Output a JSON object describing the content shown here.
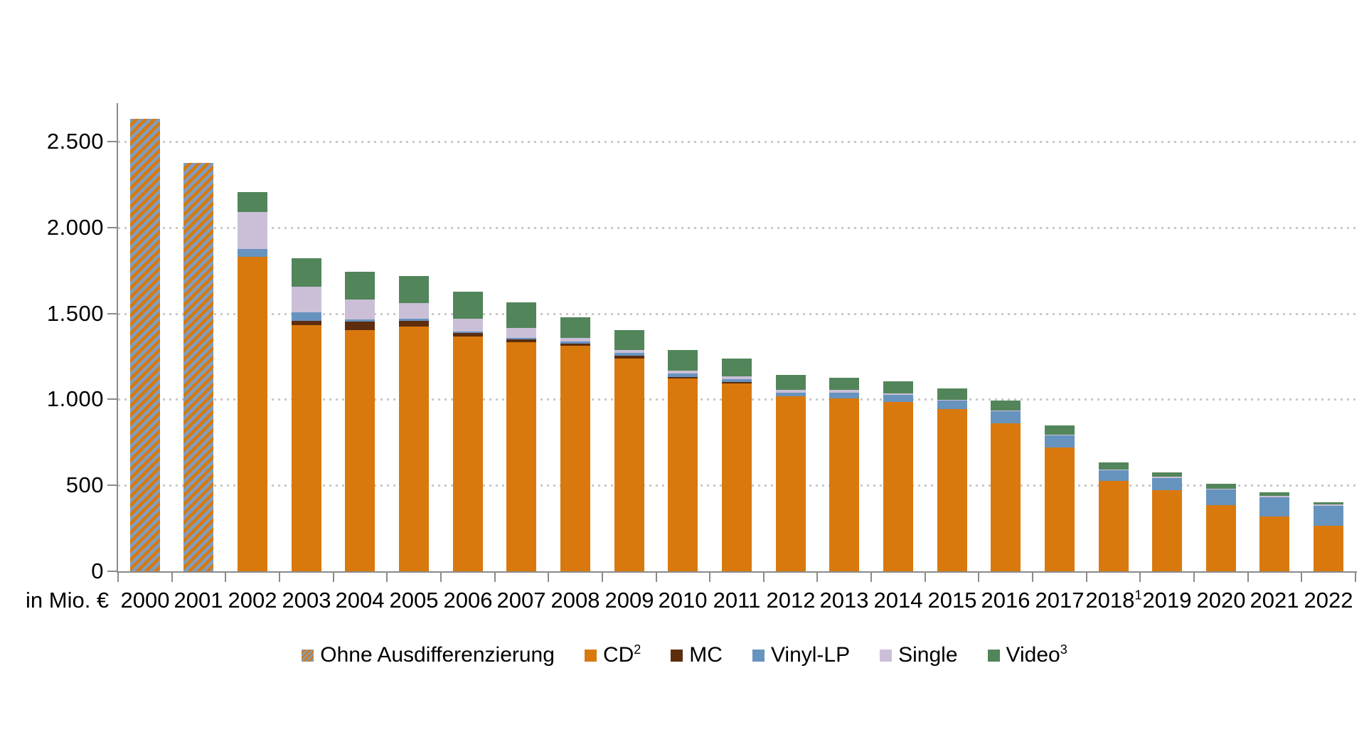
{
  "unit_label": "in Mio. €",
  "colors": {
    "orange_cd": "#d9790d",
    "brown_mc": "#5d2d0d",
    "blue_vinyl": "#6793bf",
    "lilac_single": "#cbbfd8",
    "green_video": "#52855a",
    "hatch_blue": "#7e9ec2",
    "hatch_orange": "#d9790d",
    "gridline": "#c9c9c9",
    "axis": "#8a8a8a",
    "text": "#000000"
  },
  "chart_data": {
    "type": "bar",
    "stacked": true,
    "title": "",
    "unit_label": "in Mio. €",
    "xlabel": "",
    "ylabel": "in Mio. €",
    "ylim": [
      0,
      2720
    ],
    "grid": "dotted horizontal lines at every 500",
    "legend_position": "bottom center",
    "categories": [
      {
        "year": "2000",
        "sup": ""
      },
      {
        "year": "2001",
        "sup": ""
      },
      {
        "year": "2002",
        "sup": ""
      },
      {
        "year": "2003",
        "sup": ""
      },
      {
        "year": "2004",
        "sup": ""
      },
      {
        "year": "2005",
        "sup": ""
      },
      {
        "year": "2006",
        "sup": ""
      },
      {
        "year": "2007",
        "sup": ""
      },
      {
        "year": "2008",
        "sup": ""
      },
      {
        "year": "2009",
        "sup": ""
      },
      {
        "year": "2010",
        "sup": ""
      },
      {
        "year": "2011",
        "sup": ""
      },
      {
        "year": "2012",
        "sup": ""
      },
      {
        "year": "2013",
        "sup": ""
      },
      {
        "year": "2014",
        "sup": ""
      },
      {
        "year": "2015",
        "sup": ""
      },
      {
        "year": "2016",
        "sup": ""
      },
      {
        "year": "2017",
        "sup": ""
      },
      {
        "year": "2018",
        "sup": "1"
      },
      {
        "year": "2019",
        "sup": ""
      },
      {
        "year": "2020",
        "sup": ""
      },
      {
        "year": "2021",
        "sup": ""
      },
      {
        "year": "2022",
        "sup": ""
      }
    ],
    "series": [
      {
        "name": "Ohne Ausdifferenzierung",
        "sup": "",
        "swatch": "hatch",
        "values": [
          2632,
          2375,
          0,
          0,
          0,
          0,
          0,
          0,
          0,
          0,
          0,
          0,
          0,
          0,
          0,
          0,
          0,
          0,
          0,
          0,
          0,
          0,
          0
        ]
      },
      {
        "name": "CD",
        "sup": "2",
        "swatch": "#d9790d",
        "values": [
          0,
          0,
          1830,
          1433,
          1404,
          1423,
          1367,
          1335,
          1311,
          1238,
          1123,
          1095,
          1020,
          1006,
          985,
          944,
          860,
          719,
          525,
          470,
          384,
          318,
          264
        ]
      },
      {
        "name": "MC",
        "sup": "",
        "swatch": "#5d2d0d",
        "values": [
          0,
          0,
          0,
          24,
          48,
          34,
          19,
          15,
          14,
          15,
          8,
          8,
          0,
          0,
          0,
          0,
          0,
          0,
          0,
          0,
          0,
          0,
          0
        ]
      },
      {
        "name": "Vinyl-LP",
        "sup": "",
        "swatch": "#6793bf",
        "values": [
          0,
          0,
          46,
          51,
          14,
          15,
          11,
          10,
          12,
          18,
          19,
          15,
          18,
          32,
          43,
          48,
          72,
          73,
          64,
          74,
          92,
          112,
          115
        ]
      },
      {
        "name": "Single",
        "sup": "",
        "swatch": "#cbbfd8",
        "values": [
          0,
          0,
          216,
          147,
          116,
          88,
          72,
          56,
          22,
          17,
          16,
          15,
          17,
          16,
          8,
          4,
          5,
          4,
          5,
          5,
          5,
          9,
          10
        ]
      },
      {
        "name": "Video",
        "sup": "3",
        "swatch": "#52855a",
        "values": [
          0,
          0,
          116,
          166,
          163,
          160,
          158,
          150,
          121,
          116,
          122,
          105,
          86,
          72,
          71,
          68,
          55,
          52,
          39,
          25,
          28,
          21,
          14
        ]
      }
    ],
    "totals": [
      2632,
      2375,
      2208,
      1821,
      1745,
      1720,
      1627,
      1566,
      1480,
      1404,
      1288,
      1238,
      1141,
      1126,
      1107,
      1064,
      992,
      848,
      633,
      574,
      509,
      460,
      403
    ],
    "y_axis": {
      "ticks": [
        {
          "value": 0,
          "label": "0"
        },
        {
          "value": 500,
          "label": "500"
        },
        {
          "value": 1000,
          "label": "1.000"
        },
        {
          "value": 1500,
          "label": "1.500"
        },
        {
          "value": 2000,
          "label": "2.000"
        },
        {
          "value": 2500,
          "label": "2.500"
        }
      ]
    }
  }
}
